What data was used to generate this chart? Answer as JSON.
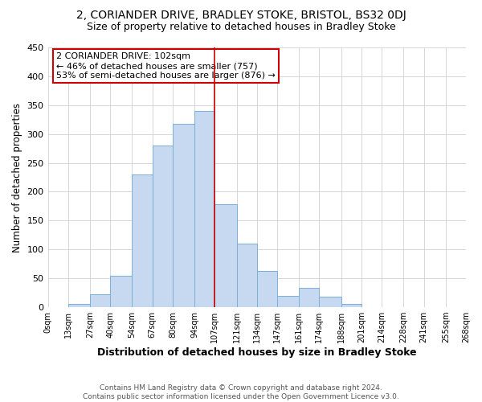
{
  "title": "2, CORIANDER DRIVE, BRADLEY STOKE, BRISTOL, BS32 0DJ",
  "subtitle": "Size of property relative to detached houses in Bradley Stoke",
  "xlabel": "Distribution of detached houses by size in Bradley Stoke",
  "ylabel": "Number of detached properties",
  "footer_lines": [
    "Contains HM Land Registry data © Crown copyright and database right 2024.",
    "Contains public sector information licensed under the Open Government Licence v3.0."
  ],
  "bar_edges": [
    0,
    13,
    27,
    40,
    54,
    67,
    80,
    94,
    107,
    121,
    134,
    147,
    161,
    174,
    188,
    201,
    214,
    228,
    241,
    255,
    268
  ],
  "bar_heights": [
    0,
    6,
    22,
    55,
    230,
    280,
    318,
    340,
    178,
    110,
    63,
    19,
    33,
    18,
    6,
    0,
    0,
    0,
    0,
    0
  ],
  "bar_color": "#c6d9f0",
  "bar_edge_color": "#7bafd4",
  "vline_x": 107,
  "vline_color": "#cc0000",
  "annotation_title": "2 CORIANDER DRIVE: 102sqm",
  "annotation_line1": "← 46% of detached houses are smaller (757)",
  "annotation_line2": "53% of semi-detached houses are larger (876) →",
  "annotation_box_facecolor": "#ffffff",
  "annotation_box_edgecolor": "#cc0000",
  "tick_labels": [
    "0sqm",
    "13sqm",
    "27sqm",
    "40sqm",
    "54sqm",
    "67sqm",
    "80sqm",
    "94sqm",
    "107sqm",
    "121sqm",
    "134sqm",
    "147sqm",
    "161sqm",
    "174sqm",
    "188sqm",
    "201sqm",
    "214sqm",
    "228sqm",
    "241sqm",
    "255sqm",
    "268sqm"
  ],
  "ylim": [
    0,
    450
  ],
  "yticks": [
    0,
    50,
    100,
    150,
    200,
    250,
    300,
    350,
    400,
    450
  ],
  "background_color": "#ffffff",
  "grid_color": "#d0d0d0"
}
